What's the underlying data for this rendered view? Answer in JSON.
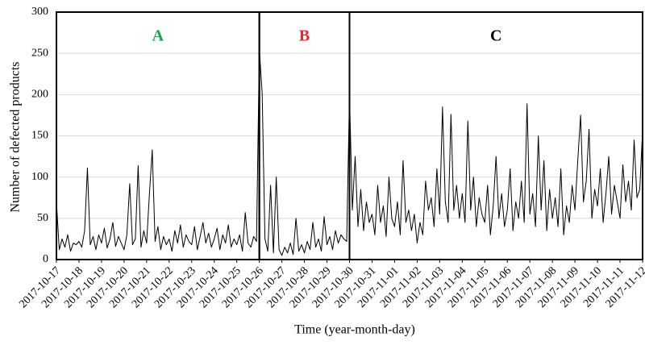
{
  "chart_data": {
    "type": "line",
    "x_label": "Time (year-month-day)",
    "y_label": "Number of defected products",
    "categories": [
      "2017-10-17",
      null,
      null,
      null,
      null,
      null,
      null,
      null,
      "2017-10-18",
      null,
      null,
      null,
      null,
      null,
      null,
      null,
      "2017-10-19",
      null,
      null,
      null,
      null,
      null,
      null,
      null,
      "2017-10-20",
      null,
      null,
      null,
      null,
      null,
      null,
      null,
      "2017-10-21",
      null,
      null,
      null,
      null,
      null,
      null,
      null,
      "2017-10-22",
      null,
      null,
      null,
      null,
      null,
      null,
      null,
      "2017-10-23",
      null,
      null,
      null,
      null,
      null,
      null,
      null,
      "2017-10-24",
      null,
      null,
      null,
      null,
      null,
      null,
      null,
      "2017-10-25",
      null,
      null,
      null,
      null,
      null,
      null,
      null,
      "2017-10-26",
      null,
      null,
      null,
      null,
      null,
      null,
      null,
      "2017-10-27",
      null,
      null,
      null,
      null,
      null,
      null,
      null,
      "2017-10-28",
      null,
      null,
      null,
      null,
      null,
      null,
      null,
      "2017-10-29",
      null,
      null,
      null,
      null,
      null,
      null,
      null,
      "2017-10-30",
      null,
      null,
      null,
      null,
      null,
      null,
      null,
      "2017-10-31",
      null,
      null,
      null,
      null,
      null,
      null,
      null,
      "2017-11-01",
      null,
      null,
      null,
      null,
      null,
      null,
      null,
      "2017-11-02",
      null,
      null,
      null,
      null,
      null,
      null,
      null,
      "2017-11-03",
      null,
      null,
      null,
      null,
      null,
      null,
      null,
      "2017-11-04",
      null,
      null,
      null,
      null,
      null,
      null,
      null,
      "2017-11-05",
      null,
      null,
      null,
      null,
      null,
      null,
      null,
      "2017-11-06",
      null,
      null,
      null,
      null,
      null,
      null,
      null,
      "2017-11-07",
      null,
      null,
      null,
      null,
      null,
      null,
      null,
      "2017-11-08",
      null,
      null,
      null,
      null,
      null,
      null,
      null,
      "2017-11-09",
      null,
      null,
      null,
      null,
      null,
      null,
      null,
      "2017-11-10",
      null,
      null,
      null,
      null,
      null,
      null,
      null,
      "2017-11-11",
      null,
      null,
      null,
      null,
      null,
      null,
      null,
      "2017-11-12"
    ],
    "values": [
      70,
      12,
      25,
      15,
      30,
      10,
      20,
      18,
      22,
      15,
      35,
      111,
      18,
      28,
      12,
      30,
      20,
      38,
      14,
      25,
      45,
      16,
      28,
      20,
      12,
      30,
      92,
      18,
      25,
      114,
      15,
      35,
      20,
      80,
      133,
      22,
      40,
      12,
      28,
      18,
      25,
      10,
      35,
      20,
      42,
      15,
      30,
      22,
      18,
      40,
      12,
      28,
      45,
      20,
      32,
      15,
      25,
      38,
      12,
      30,
      20,
      42,
      15,
      25,
      18,
      30,
      10,
      57,
      20,
      15,
      28,
      22,
      255,
      202,
      25,
      10,
      90,
      8,
      100,
      12,
      5,
      15,
      8,
      20,
      6,
      50,
      10,
      18,
      8,
      22,
      12,
      45,
      15,
      25,
      10,
      52,
      18,
      28,
      12,
      35,
      20,
      30,
      25,
      22,
      199,
      60,
      125,
      40,
      85,
      35,
      70,
      45,
      55,
      30,
      90,
      45,
      65,
      28,
      100,
      50,
      40,
      70,
      30,
      120,
      45,
      60,
      35,
      55,
      20,
      45,
      30,
      95,
      60,
      75,
      40,
      110,
      55,
      185,
      70,
      45,
      176,
      60,
      90,
      50,
      80,
      45,
      168,
      60,
      100,
      40,
      75,
      55,
      45,
      90,
      30,
      65,
      125,
      50,
      80,
      40,
      60,
      110,
      35,
      70,
      50,
      95,
      45,
      189,
      55,
      80,
      40,
      150,
      60,
      120,
      35,
      85,
      50,
      75,
      40,
      110,
      30,
      65,
      45,
      90,
      60,
      120,
      175,
      70,
      95,
      158,
      50,
      85,
      65,
      110,
      45,
      80,
      125,
      55,
      90,
      70,
      50,
      115,
      70,
      95,
      60,
      145,
      75,
      85,
      157
    ],
    "color": "#000000",
    "ylim": [
      0,
      300
    ],
    "yticks": [
      0,
      50,
      100,
      150,
      200,
      250,
      300
    ],
    "grid": true,
    "regions": [
      {
        "label": "A",
        "color": "#1aa34a",
        "start": "2017-10-17",
        "end": "2017-10-26"
      },
      {
        "label": "B",
        "color": "#e8262b",
        "start": "2017-10-26",
        "end": "2017-10-30"
      },
      {
        "label": "C",
        "color": "#000000",
        "start": "2017-10-30",
        "end": "2017-11-12"
      }
    ]
  }
}
